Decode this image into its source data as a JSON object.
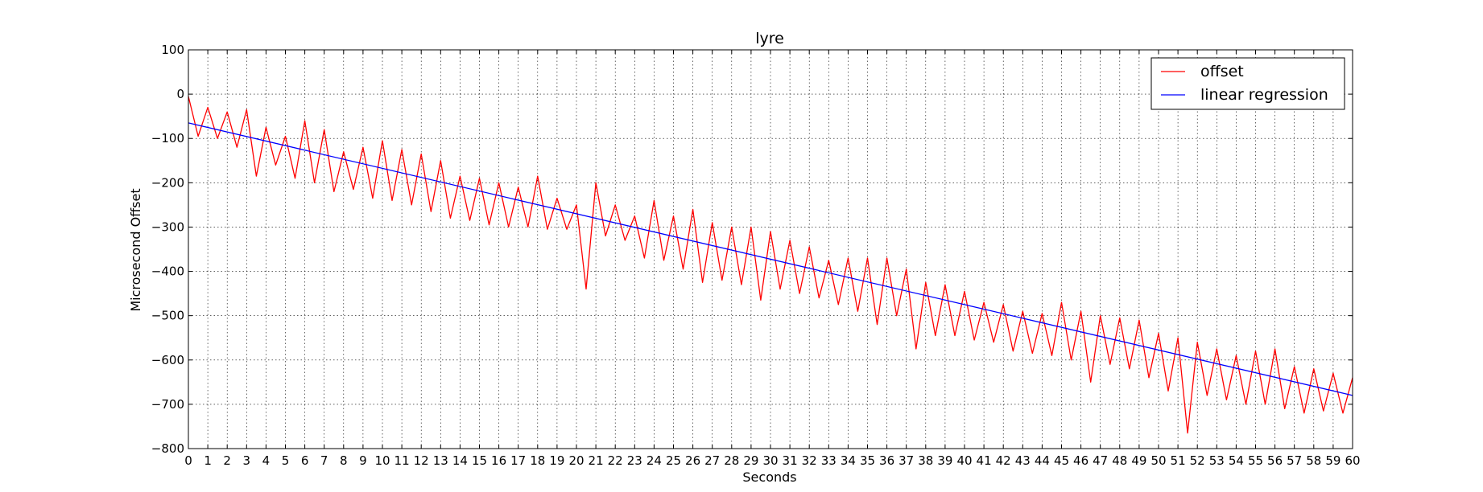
{
  "chart_data": {
    "type": "line",
    "title": "lyre",
    "xlabel": "Seconds",
    "ylabel": "Microsecond Offset",
    "xlim": [
      0,
      60
    ],
    "ylim": [
      -800,
      100
    ],
    "x_ticks": [
      "0",
      "1",
      "2",
      "3",
      "4",
      "5",
      "6",
      "7",
      "8",
      "9",
      "10",
      "11",
      "12",
      "13",
      "14",
      "15",
      "16",
      "17",
      "18",
      "19",
      "20",
      "21",
      "22",
      "23",
      "24",
      "25",
      "26",
      "27",
      "28",
      "29",
      "30",
      "31",
      "32",
      "33",
      "34",
      "35",
      "36",
      "37",
      "38",
      "39",
      "40",
      "41",
      "42",
      "43",
      "44",
      "45",
      "46",
      "47",
      "48",
      "49",
      "50",
      "51",
      "52",
      "53",
      "54",
      "55",
      "56",
      "57",
      "58",
      "59",
      "60"
    ],
    "y_ticks": [
      "100",
      "0",
      "−100",
      "−200",
      "−300",
      "−400",
      "−500",
      "−600",
      "−700",
      "−800"
    ],
    "grid": true,
    "legend_position": "top-right",
    "series": [
      {
        "name": "offset",
        "color": "#ff0000",
        "x": [
          0,
          0.5,
          1,
          1.5,
          2,
          2.5,
          3,
          3.5,
          4,
          4.5,
          5,
          5.5,
          6,
          6.5,
          7,
          7.5,
          8,
          8.5,
          9,
          9.5,
          10,
          10.5,
          11,
          11.5,
          12,
          12.5,
          13,
          13.5,
          14,
          14.5,
          15,
          15.5,
          16,
          16.5,
          17,
          17.5,
          18,
          18.5,
          19,
          19.5,
          20,
          20.5,
          21,
          21.5,
          22,
          22.5,
          23,
          23.5,
          24,
          24.5,
          25,
          25.5,
          26,
          26.5,
          27,
          27.5,
          28,
          28.5,
          29,
          29.5,
          30,
          30.5,
          31,
          31.5,
          32,
          32.5,
          33,
          33.5,
          34,
          34.5,
          35,
          35.5,
          36,
          36.5,
          37,
          37.5,
          38,
          38.5,
          39,
          39.5,
          40,
          40.5,
          41,
          41.5,
          42,
          42.5,
          43,
          43.5,
          44,
          44.5,
          45,
          45.5,
          46,
          46.5,
          47,
          47.5,
          48,
          48.5,
          49,
          49.5,
          50,
          50.5,
          51,
          51.5,
          52,
          52.5,
          53,
          53.5,
          54,
          54.5,
          55,
          55.5,
          56,
          56.5,
          57,
          57.5,
          58,
          58.5,
          59,
          59.5,
          60
        ],
        "values": [
          -5,
          -95,
          -30,
          -100,
          -40,
          -120,
          -35,
          -185,
          -75,
          -160,
          -95,
          -190,
          -60,
          -200,
          -80,
          -220,
          -130,
          -215,
          -120,
          -235,
          -105,
          -240,
          -125,
          -250,
          -135,
          -265,
          -150,
          -280,
          -185,
          -285,
          -190,
          -295,
          -200,
          -300,
          -210,
          -300,
          -185,
          -305,
          -235,
          -305,
          -250,
          -440,
          -200,
          -320,
          -250,
          -330,
          -275,
          -370,
          -240,
          -375,
          -275,
          -395,
          -260,
          -425,
          -290,
          -420,
          -300,
          -430,
          -300,
          -465,
          -310,
          -440,
          -330,
          -450,
          -345,
          -460,
          -375,
          -475,
          -370,
          -490,
          -370,
          -520,
          -370,
          -500,
          -395,
          -575,
          -425,
          -545,
          -430,
          -545,
          -445,
          -555,
          -470,
          -560,
          -475,
          -580,
          -490,
          -585,
          -495,
          -590,
          -470,
          -600,
          -490,
          -650,
          -500,
          -610,
          -505,
          -620,
          -510,
          -640,
          -540,
          -670,
          -550,
          -765,
          -560,
          -680,
          -575,
          -690,
          -590,
          -700,
          -580,
          -700,
          -575,
          -710,
          -615,
          -720,
          -620,
          -715,
          -630,
          -720,
          -640
        ]
      },
      {
        "name": "linear regression",
        "color": "#0000ff",
        "x": [
          0,
          60
        ],
        "values": [
          -65,
          -680
        ]
      }
    ]
  }
}
